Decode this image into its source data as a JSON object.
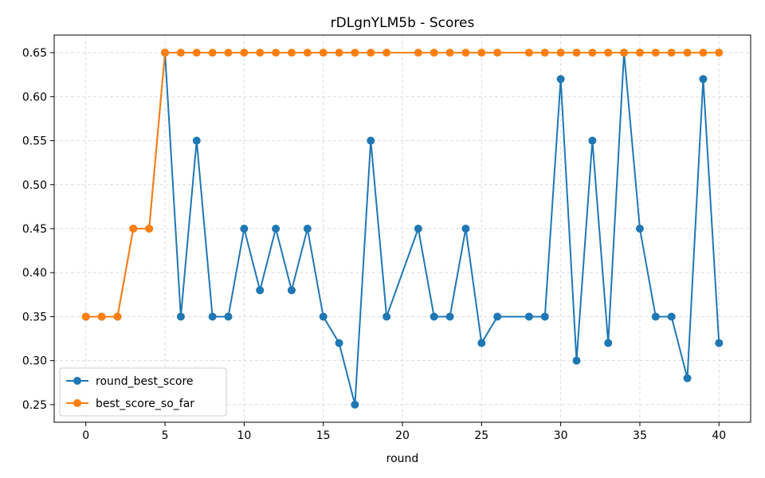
{
  "chart_data": {
    "type": "line",
    "title": "rDLgnYLM5b - Scores",
    "xlabel": "round",
    "ylabel": "",
    "xlim": [
      -2,
      42
    ],
    "ylim": [
      0.23,
      0.67
    ],
    "xticks": [
      0,
      5,
      10,
      15,
      20,
      25,
      30,
      35,
      40
    ],
    "yticks": [
      0.25,
      0.3,
      0.35,
      0.4,
      0.45,
      0.5,
      0.55,
      0.6,
      0.65
    ],
    "grid": true,
    "legend_position": "lower-left",
    "series": [
      {
        "name": "round_best_score",
        "color": "#1f77b4",
        "x": [
          0,
          1,
          2,
          3,
          4,
          5,
          6,
          7,
          8,
          9,
          10,
          11,
          12,
          13,
          14,
          15,
          16,
          17,
          18,
          19,
          21,
          22,
          23,
          24,
          25,
          26,
          28,
          29,
          30,
          31,
          32,
          33,
          34,
          35,
          36,
          37,
          38,
          39,
          40
        ],
        "y": [
          0.35,
          0.35,
          0.35,
          0.45,
          0.45,
          0.65,
          0.35,
          0.55,
          0.35,
          0.35,
          0.45,
          0.38,
          0.45,
          0.38,
          0.45,
          0.35,
          0.32,
          0.25,
          0.55,
          0.35,
          0.45,
          0.35,
          0.35,
          0.45,
          0.32,
          0.35,
          0.35,
          0.35,
          0.62,
          0.3,
          0.55,
          0.32,
          0.65,
          0.45,
          0.35,
          0.35,
          0.28,
          0.62,
          0.32
        ]
      },
      {
        "name": "best_score_so_far",
        "color": "#ff7f0e",
        "x": [
          0,
          1,
          2,
          3,
          4,
          5,
          6,
          7,
          8,
          9,
          10,
          11,
          12,
          13,
          14,
          15,
          16,
          17,
          18,
          19,
          21,
          22,
          23,
          24,
          25,
          26,
          28,
          29,
          30,
          31,
          32,
          33,
          34,
          35,
          36,
          37,
          38,
          39,
          40
        ],
        "y": [
          0.35,
          0.35,
          0.35,
          0.45,
          0.45,
          0.65,
          0.65,
          0.65,
          0.65,
          0.65,
          0.65,
          0.65,
          0.65,
          0.65,
          0.65,
          0.65,
          0.65,
          0.65,
          0.65,
          0.65,
          0.65,
          0.65,
          0.65,
          0.65,
          0.65,
          0.65,
          0.65,
          0.65,
          0.65,
          0.65,
          0.65,
          0.65,
          0.65,
          0.65,
          0.65,
          0.65,
          0.65,
          0.65,
          0.65
        ]
      }
    ]
  }
}
